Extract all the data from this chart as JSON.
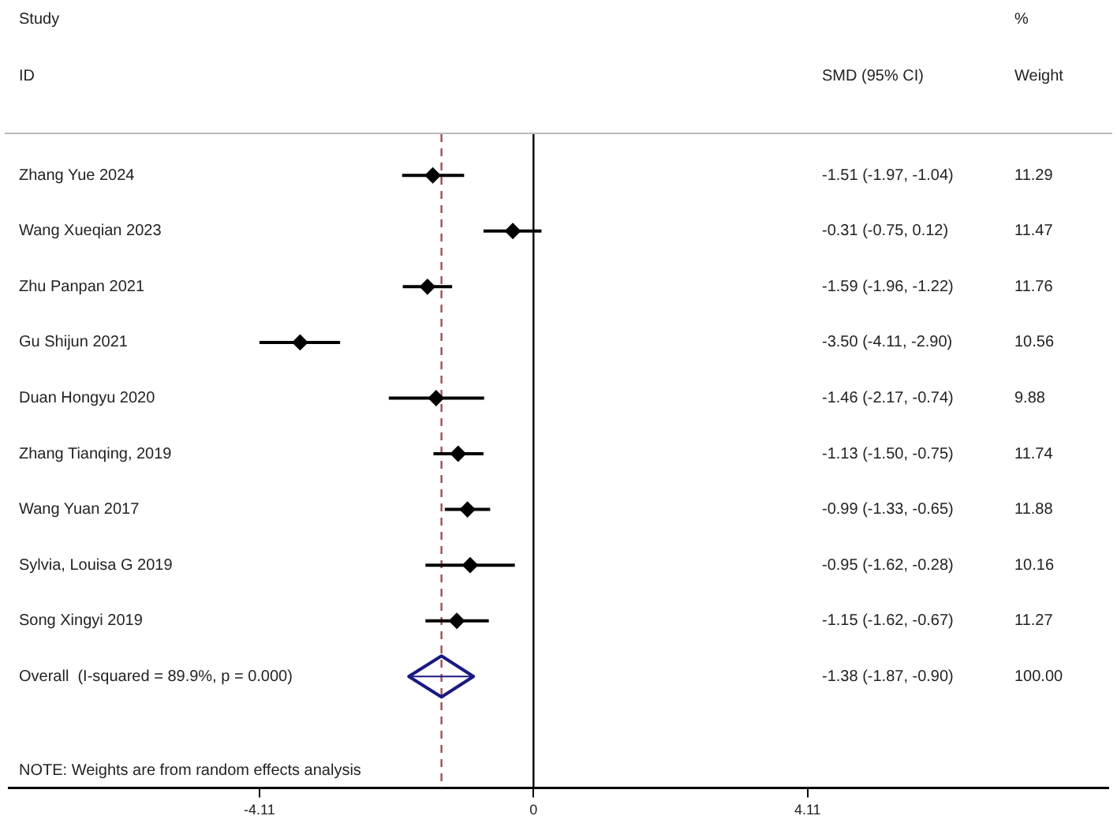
{
  "chart_data": {
    "type": "scatter",
    "orientation": "horizontal",
    "categories": [
      "Zhang Yue 2024",
      "Wang Xueqian 2023",
      "Zhu Panpan 2021",
      "Gu Shijun 2021",
      "Duan Hongyu 2020",
      "Zhang Tianqing, 2019",
      "Wang Yuan 2017",
      "Sylvia, Louisa G 2019",
      "Song Xingyi 2019",
      "Overall  (I-squared = 89.9%, p = 0.000)"
    ],
    "series": [
      {
        "color": "#000000",
        "marker": "diamond",
        "values": [
          -1.51,
          -0.31,
          -1.59,
          -3.5,
          -1.46,
          -1.13,
          -0.99,
          -0.95,
          -1.15,
          null
        ],
        "errors": [
          [
            -1.97,
            -1.04
          ],
          [
            -0.75,
            0.12
          ],
          [
            -1.96,
            -1.22
          ],
          [
            -4.11,
            -2.9
          ],
          [
            -2.17,
            -0.74
          ],
          [
            -1.5,
            -0.75
          ],
          [
            -1.33,
            -0.65
          ],
          [
            -1.62,
            -0.28
          ],
          [
            -1.62,
            -0.67
          ],
          null
        ]
      },
      {
        "color": "#1a1a80",
        "marker": "diamond",
        "values": [
          null,
          null,
          null,
          null,
          null,
          null,
          null,
          null,
          null,
          -1.38
        ],
        "errors": [
          null,
          null,
          null,
          null,
          null,
          null,
          null,
          null,
          null,
          [
            -1.87,
            -0.9
          ]
        ]
      }
    ],
    "xlim": [
      -7.87,
      8.62
    ],
    "xticks": [
      -4.11,
      0,
      4.11
    ],
    "ref_lines": [
      {
        "axis": "x",
        "value": 0,
        "color": "#000000"
      },
      {
        "axis": "x",
        "value": -1.38,
        "color": "#a05050",
        "line_style": "dashed"
      }
    ],
    "annotations": [
      "Study",
      "ID",
      "SMD (95% CI)",
      "%",
      "Weight",
      "-1.51 (-1.97, -1.04)",
      "-0.31 (-0.75, 0.12)",
      "-1.59 (-1.96, -1.22)",
      "-3.50 (-4.11, -2.90)",
      "-1.46 (-2.17, -0.74)",
      "-1.13 (-1.50, -0.75)",
      "-0.99 (-1.33, -0.65)",
      "-0.95 (-1.62, -0.28)",
      "-1.15 (-1.62, -0.67)",
      "-1.38 (-1.87, -0.90)",
      "11.29",
      "11.47",
      "11.76",
      "10.56",
      "9.88",
      "11.74",
      "11.88",
      "10.16",
      "11.27",
      "100.00",
      "NOTE: Weights are from random effects analysis"
    ],
    "grid": false,
    "legend": false
  }
}
